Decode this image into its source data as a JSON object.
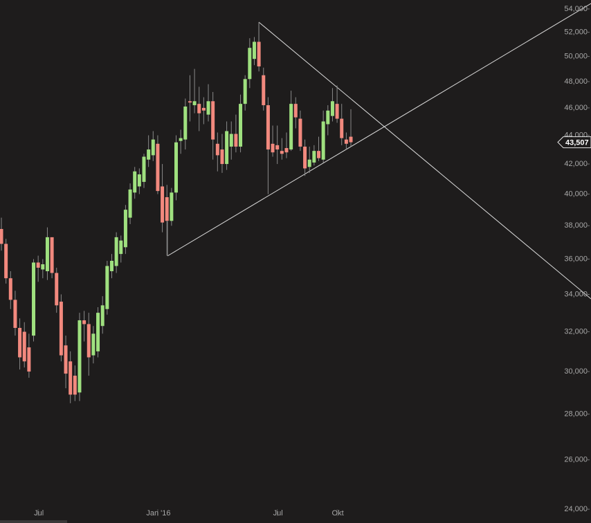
{
  "chart_data": {
    "type": "candlestick",
    "categories": [
      null,
      null,
      null,
      null,
      null,
      null,
      null,
      null,
      "Jul",
      null,
      null,
      null,
      null,
      null,
      null,
      null,
      null,
      null,
      null,
      null,
      null,
      null,
      null,
      null,
      null,
      null,
      null,
      null,
      null,
      null,
      null,
      null,
      null,
      null,
      "Jan '16",
      null,
      null,
      null,
      null,
      null,
      null,
      null,
      null,
      null,
      null,
      null,
      null,
      null,
      null,
      null,
      null,
      null,
      null,
      null,
      null,
      null,
      null,
      null,
      null,
      null,
      "Jul",
      null,
      null,
      null,
      null,
      null,
      null,
      null,
      null,
      null,
      null,
      null,
      null,
      "Okt",
      null,
      null,
      null
    ],
    "open": [
      37800,
      36900,
      34900,
      33700,
      32200,
      32000,
      31200,
      31800,
      35800,
      35400,
      35300,
      37300,
      35200,
      33600,
      31300,
      30500,
      29800,
      29000,
      32600,
      32400,
      30800,
      31000,
      32300,
      33200,
      35300,
      35600,
      36300,
      36700,
      38500,
      40100,
      40500,
      40800,
      42300,
      42600,
      43400,
      40500,
      39800,
      38300,
      40100,
      43600,
      43700,
      46500,
      46200,
      46300,
      46000,
      45500,
      46500,
      43400,
      43000,
      42000,
      43200,
      44100,
      43200,
      46300,
      48200,
      49800,
      51200,
      48500,
      46200,
      43400,
      43300,
      42900,
      43100,
      43000,
      46300,
      45200,
      43200,
      41800,
      42100,
      42900,
      42300,
      44800,
      45400,
      46300,
      45200,
      43700,
      43900
    ],
    "high": [
      38500,
      37200,
      35300,
      34200,
      32700,
      32500,
      31900,
      36000,
      36200,
      36000,
      37900,
      37200,
      35500,
      34000,
      31800,
      31000,
      30300,
      33000,
      33100,
      33000,
      32300,
      33300,
      33900,
      35900,
      36300,
      37600,
      37400,
      39300,
      40700,
      41800,
      41700,
      42700,
      44000,
      44300,
      44000,
      42000,
      40600,
      40400,
      44000,
      44400,
      46700,
      48500,
      49000,
      47600,
      46800,
      47800,
      47200,
      44200,
      44100,
      45000,
      45000,
      45500,
      47000,
      48500,
      51500,
      51600,
      52800,
      49100,
      46800,
      44700,
      44700,
      43800,
      44200,
      47300,
      46800,
      45800,
      43700,
      43200,
      43300,
      43900,
      45800,
      46200,
      47500,
      47700,
      46300,
      44200,
      45900
    ],
    "low": [
      36500,
      34600,
      33200,
      31800,
      30100,
      30200,
      29700,
      31500,
      34700,
      34900,
      34800,
      34900,
      33000,
      30500,
      29200,
      28500,
      28600,
      28600,
      31500,
      29800,
      30400,
      30700,
      31900,
      32900,
      34900,
      35200,
      35800,
      36300,
      38100,
      39700,
      40000,
      40400,
      41800,
      42200,
      40000,
      37600,
      36200,
      38000,
      39600,
      42700,
      43000,
      45000,
      45600,
      44300,
      44800,
      45000,
      42300,
      41500,
      41400,
      41600,
      42300,
      42800,
      42800,
      45800,
      47500,
      49300,
      48800,
      45800,
      40000,
      42500,
      42000,
      42300,
      42400,
      42900,
      44500,
      42900,
      41200,
      41400,
      41900,
      42200,
      42100,
      44000,
      45000,
      44900,
      43300,
      43000,
      43200
    ],
    "close": [
      36900,
      34900,
      33700,
      32200,
      30700,
      30500,
      30000,
      35800,
      35500,
      35700,
      37300,
      35200,
      33400,
      30800,
      29900,
      28900,
      28900,
      32600,
      32400,
      30700,
      31900,
      33000,
      33400,
      35600,
      35900,
      37300,
      37100,
      39000,
      40300,
      41500,
      41300,
      42500,
      43000,
      43700,
      40200,
      38200,
      38300,
      40100,
      43500,
      43800,
      46100,
      46400,
      46500,
      45600,
      45800,
      46500,
      43700,
      42600,
      42000,
      44300,
      44100,
      43200,
      46300,
      48200,
      50700,
      51200,
      49200,
      46200,
      43000,
      42800,
      43000,
      42700,
      42800,
      46300,
      45300,
      43200,
      41700,
      42300,
      42900,
      42400,
      45000,
      45800,
      46500,
      45200,
      43800,
      43400,
      43507
    ],
    "up_color": "#9fe07f",
    "down_color": "#f2897e",
    "last_price": {
      "value": 43507,
      "label": "43,507"
    },
    "log_scale": true,
    "ylim": [
      23470,
      54790
    ],
    "yticks": [
      {
        "value": 24000,
        "label": "24,000"
      },
      {
        "value": 26000,
        "label": "26,000"
      },
      {
        "value": 28000,
        "label": "28,000"
      },
      {
        "value": 30000,
        "label": "30,000"
      },
      {
        "value": 32000,
        "label": "32,000"
      },
      {
        "value": 34000,
        "label": "34,000"
      },
      {
        "value": 36000,
        "label": "36,000"
      },
      {
        "value": 38000,
        "label": "38,000"
      },
      {
        "value": 40000,
        "label": "40,000"
      },
      {
        "value": 42000,
        "label": "42,000"
      },
      {
        "value": 44000,
        "label": "44,000"
      },
      {
        "value": 46000,
        "label": "46,000"
      },
      {
        "value": 48000,
        "label": "48,000"
      },
      {
        "value": 50000,
        "label": "50,000"
      },
      {
        "value": 52000,
        "label": "52,000"
      },
      {
        "value": 54000,
        "label": "54,000"
      }
    ]
  }
}
